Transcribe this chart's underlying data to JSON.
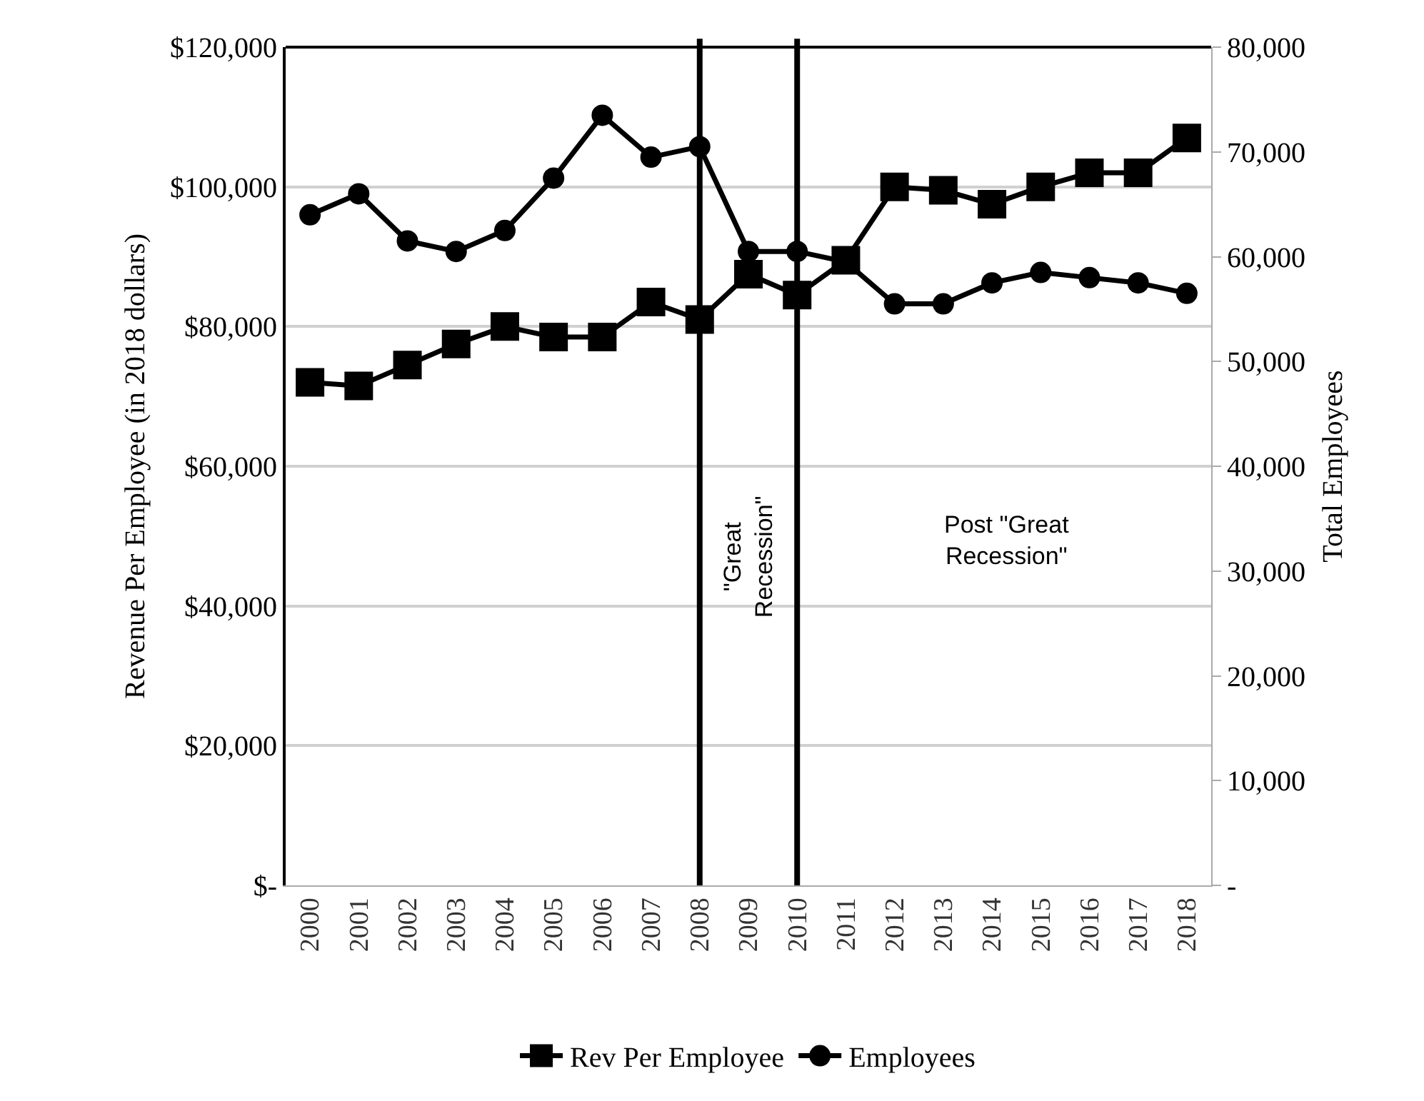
{
  "chart_data": {
    "type": "line",
    "ylabel": "Revenue Per Employee (in 2018 dollars)",
    "y2label": "Total Employees",
    "categories": [
      "2000",
      "2001",
      "2002",
      "2003",
      "2004",
      "2005",
      "2006",
      "2007",
      "2008",
      "2009",
      "2010",
      "2011",
      "2012",
      "2013",
      "2014",
      "2015",
      "2016",
      "2017",
      "2018"
    ],
    "series": [
      {
        "name": "Rev Per Employee",
        "color": "#000000",
        "marker": "square",
        "values": [
          72000,
          71500,
          74500,
          77500,
          80000,
          78500,
          78500,
          83500,
          81000,
          87500,
          84500,
          89500,
          100000,
          99500,
          97500,
          100000,
          102000,
          102000,
          107000
        ]
      },
      {
        "name": "Employees",
        "color": "#000000",
        "marker": "circle",
        "axis": "y2",
        "values": [
          64000,
          66000,
          61500,
          60500,
          62500,
          67500,
          73500,
          69500,
          70500,
          60500,
          60500,
          59500,
          55500,
          55500,
          57500,
          58500,
          58000,
          57500,
          56500
        ]
      }
    ],
    "ylim": [
      0,
      120000
    ],
    "yticks": [
      {
        "value": 0,
        "label": "$-"
      },
      {
        "value": 20000,
        "label": "$20,000"
      },
      {
        "value": 40000,
        "label": "$40,000"
      },
      {
        "value": 60000,
        "label": "$60,000"
      },
      {
        "value": 80000,
        "label": "$80,000"
      },
      {
        "value": 100000,
        "label": "$100,000"
      },
      {
        "value": 120000,
        "label": "$120,000"
      }
    ],
    "y2lim": [
      0,
      80000
    ],
    "y2ticks": [
      {
        "value": 0,
        "label": "-"
      },
      {
        "value": 10000,
        "label": "10,000"
      },
      {
        "value": 20000,
        "label": "20,000"
      },
      {
        "value": 30000,
        "label": "30,000"
      },
      {
        "value": 40000,
        "label": "40,000"
      },
      {
        "value": 50000,
        "label": "50,000"
      },
      {
        "value": 60000,
        "label": "60,000"
      },
      {
        "value": 70000,
        "label": "70,000"
      },
      {
        "value": 80000,
        "label": "80,000"
      }
    ],
    "ref_lines": [
      {
        "axis": "x",
        "value": "2008",
        "color": "#000000"
      },
      {
        "axis": "x",
        "value": "2010",
        "color": "#000000"
      }
    ],
    "annotations": [
      "\"Great Recession\"",
      "Post \"Great Recession\""
    ],
    "grid": "y",
    "legend": "bottom"
  }
}
